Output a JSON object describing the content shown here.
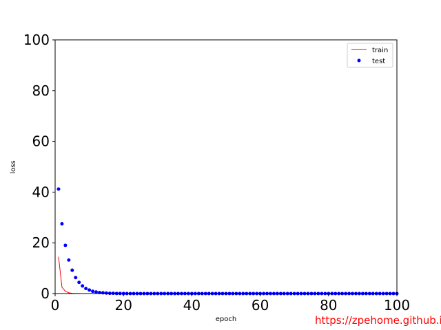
{
  "chart_data": {
    "type": "line",
    "title": "",
    "xlabel": "epoch",
    "ylabel": "loss",
    "xlim": [
      0,
      100
    ],
    "ylim": [
      0,
      100
    ],
    "xticks": [
      0,
      20,
      40,
      60,
      80,
      100
    ],
    "yticks": [
      0,
      20,
      40,
      60,
      80,
      100
    ],
    "x_tick_labels": [
      "0",
      "20",
      "40",
      "60",
      "80",
      "100"
    ],
    "y_tick_labels": [
      "0",
      "20",
      "40",
      "60",
      "80",
      "100"
    ],
    "grid": false,
    "legend_position": "top-right",
    "series": [
      {
        "name": "train",
        "style": "line",
        "color": "#ff0000",
        "x": [
          1,
          2,
          3,
          4,
          5,
          6,
          7,
          8,
          9,
          10,
          15,
          20,
          40,
          60,
          80,
          100
        ],
        "y": [
          14.5,
          2.5,
          0.9,
          0.3,
          0.1,
          0.05,
          0.02,
          0.01,
          0.01,
          0,
          0,
          0,
          0,
          0,
          0,
          0
        ]
      },
      {
        "name": "test",
        "style": "scatter",
        "color": "#0000ff",
        "x": [
          1,
          2,
          3,
          4,
          5,
          6,
          7,
          8,
          9,
          10,
          11,
          12,
          13,
          14,
          15,
          16,
          17,
          18,
          19,
          20,
          21,
          22,
          23,
          24,
          25,
          26,
          27,
          28,
          29,
          30,
          31,
          32,
          33,
          34,
          35,
          36,
          37,
          38,
          39,
          40,
          41,
          42,
          43,
          44,
          45,
          46,
          47,
          48,
          49,
          50,
          51,
          52,
          53,
          54,
          55,
          56,
          57,
          58,
          59,
          60,
          61,
          62,
          63,
          64,
          65,
          66,
          67,
          68,
          69,
          70,
          71,
          72,
          73,
          74,
          75,
          76,
          77,
          78,
          79,
          80,
          81,
          82,
          83,
          84,
          85,
          86,
          87,
          88,
          89,
          90,
          91,
          92,
          93,
          94,
          95,
          96,
          97,
          98,
          99,
          100
        ],
        "y": [
          41.2,
          27.5,
          19.0,
          13.2,
          9.2,
          6.3,
          4.4,
          3.0,
          2.0,
          1.4,
          0.9,
          0.6,
          0.4,
          0.3,
          0.2,
          0.1,
          0.1,
          0.05,
          0.03,
          0.02,
          0,
          0,
          0,
          0,
          0,
          0,
          0,
          0,
          0,
          0,
          0,
          0,
          0,
          0,
          0,
          0,
          0,
          0,
          0,
          0,
          0,
          0,
          0,
          0,
          0,
          0,
          0,
          0,
          0,
          0,
          0,
          0,
          0,
          0,
          0,
          0,
          0,
          0,
          0,
          0,
          0,
          0,
          0,
          0,
          0,
          0,
          0,
          0,
          0,
          0,
          0,
          0,
          0,
          0,
          0,
          0,
          0,
          0,
          0,
          0,
          0,
          0,
          0,
          0,
          0,
          0,
          0,
          0,
          0,
          0,
          0,
          0,
          0,
          0,
          0,
          0,
          0,
          0,
          0,
          0
        ]
      }
    ]
  },
  "watermark": {
    "text": "https://zpehome.github.io",
    "color": "#ff0000"
  }
}
